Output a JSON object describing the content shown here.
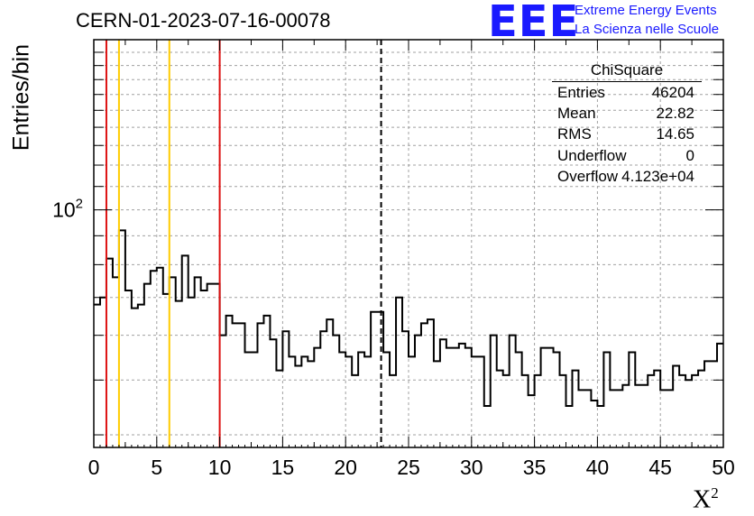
{
  "header": {
    "title": "CERN-01-2023-07-16-00078",
    "logo_text": "EEE",
    "logo_line1": "Extreme Energy Events",
    "logo_line2": "La Scienza nelle Scuole"
  },
  "stats": {
    "name": "ChiSquare",
    "rows": [
      {
        "label": "Entries",
        "value": "46204"
      },
      {
        "label": "Mean",
        "value": "22.82"
      },
      {
        "label": "RMS",
        "value": "14.65"
      },
      {
        "label": "Underflow",
        "value": "0"
      },
      {
        "label": "Overflow",
        "value": "4.123e+04"
      }
    ]
  },
  "colors": {
    "axis": "#000000",
    "grid": "#a0a0a0",
    "histogram": "#000000",
    "red_line": "#dd1111",
    "yellow_line": "#ffcc00",
    "logo": "#1a1aff"
  },
  "chart_data": {
    "type": "histogram",
    "xlabel": "X",
    "xlabel_superscript": "2",
    "ylabel": "Entries/bin",
    "xlim": [
      0,
      50
    ],
    "ylim": [
      38,
      200
    ],
    "log_y": true,
    "grid": true,
    "x_ticks": [
      0,
      5,
      10,
      15,
      20,
      25,
      30,
      35,
      40,
      45,
      50
    ],
    "y_tick_label": "10",
    "y_tick_label_superscript": "2",
    "bin_width": 0.5,
    "values": [
      68,
      70,
      82,
      76,
      92,
      72,
      67,
      68,
      74,
      78,
      79,
      71,
      76,
      69,
      83,
      70,
      76,
      72,
      74,
      74,
      60,
      65,
      63,
      63,
      56,
      56,
      63,
      65,
      59,
      52,
      61,
      55,
      53,
      55,
      54,
      57,
      61,
      64,
      60,
      56,
      55,
      51,
      56,
      55,
      66,
      66,
      56,
      51,
      70,
      61,
      55,
      60,
      63,
      64,
      54,
      59,
      57,
      57,
      58,
      57,
      55,
      55,
      45,
      60,
      52,
      51,
      60,
      56,
      51,
      47,
      51,
      57,
      57,
      56,
      51,
      45,
      52,
      48,
      48,
      46,
      45,
      56,
      48,
      48,
      49,
      56,
      49,
      49,
      51,
      52,
      48,
      48,
      53,
      51,
      50,
      51,
      52,
      54,
      54,
      58
    ],
    "vlines": [
      {
        "x": 1,
        "color": "red",
        "style": "solid"
      },
      {
        "x": 2,
        "color": "yellow",
        "style": "solid"
      },
      {
        "x": 6,
        "color": "yellow",
        "style": "solid"
      },
      {
        "x": 10,
        "color": "red",
        "style": "solid"
      },
      {
        "x": 22.82,
        "color": "black",
        "style": "dashed"
      }
    ]
  }
}
